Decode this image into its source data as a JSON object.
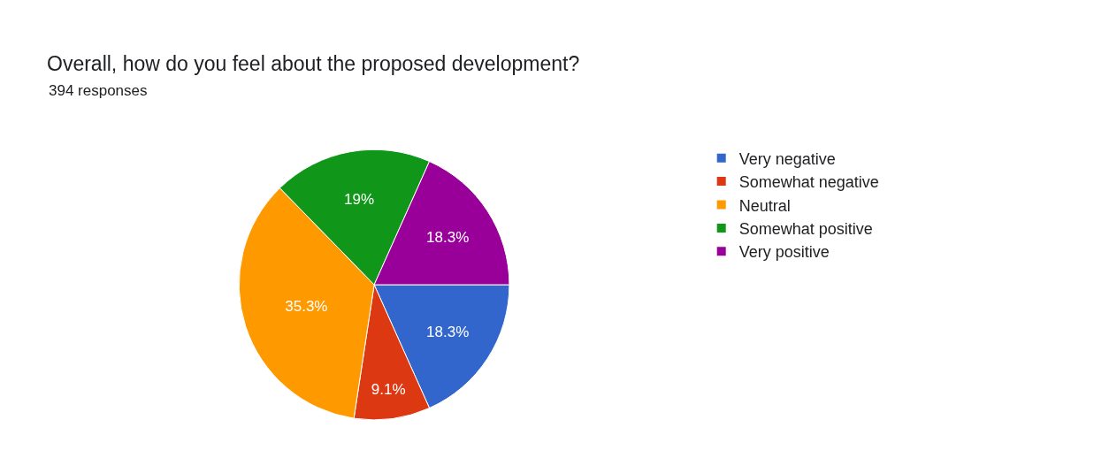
{
  "chart_data": {
    "type": "pie",
    "title": "Overall, how do you feel about the proposed development?",
    "subtitle": "394 responses",
    "categories": [
      "Very negative",
      "Somewhat negative",
      "Neutral",
      "Somewhat positive",
      "Very positive"
    ],
    "values": [
      18.3,
      9.1,
      35.3,
      19,
      18.3
    ],
    "colors": [
      "#3366cc",
      "#dc3912",
      "#ff9900",
      "#109618",
      "#990099"
    ],
    "value_labels": [
      "18.3%",
      "9.1%",
      "35.3%",
      "19%",
      "18.3%"
    ],
    "legend": "right"
  }
}
